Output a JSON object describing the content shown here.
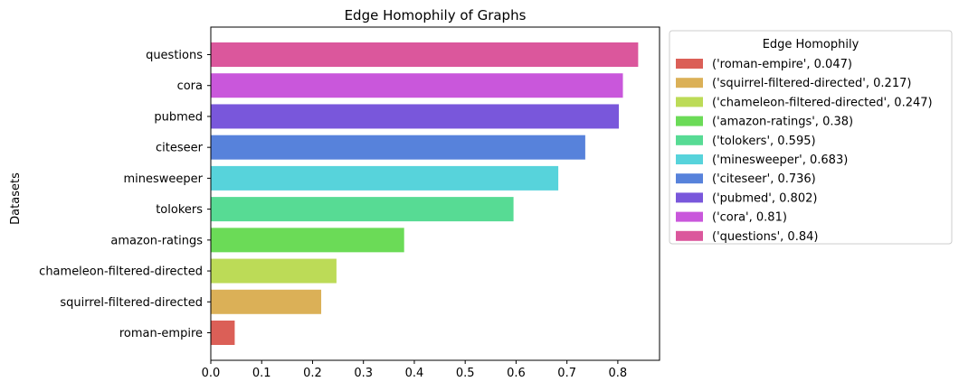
{
  "chart_data": {
    "type": "bar",
    "orientation": "horizontal",
    "title": "Edge Homophily of Graphs",
    "xlabel": "",
    "ylabel": "Datasets",
    "xlim": [
      0,
      0.882
    ],
    "xticks": [
      "0.0",
      "0.1",
      "0.2",
      "0.3",
      "0.4",
      "0.5",
      "0.6",
      "0.7",
      "0.8"
    ],
    "xtick_values": [
      0,
      0.1,
      0.2,
      0.3,
      0.4,
      0.5,
      0.6,
      0.7,
      0.8
    ],
    "grid": false,
    "categories": [
      "roman-empire",
      "squirrel-filtered-directed",
      "chameleon-filtered-directed",
      "amazon-ratings",
      "tolokers",
      "minesweeper",
      "citeseer",
      "pubmed",
      "cora",
      "questions"
    ],
    "values": [
      0.047,
      0.217,
      0.247,
      0.38,
      0.595,
      0.683,
      0.736,
      0.802,
      0.81,
      0.84
    ],
    "colors": [
      "#db5f57",
      "#dbb057",
      "#bcdb57",
      "#6bdb57",
      "#57db94",
      "#57d3db",
      "#5782db",
      "#7957db",
      "#c957db",
      "#db579c"
    ],
    "legend": {
      "title": "Edge Homophily",
      "placement": "outside upper right",
      "entries": [
        "('roman-empire', 0.047)",
        "('squirrel-filtered-directed', 0.217)",
        "('chameleon-filtered-directed', 0.247)",
        "('amazon-ratings', 0.38)",
        "('tolokers', 0.595)",
        "('minesweeper', 0.683)",
        "('citeseer', 0.736)",
        "('pubmed', 0.802)",
        "('cora', 0.81)",
        "('questions', 0.84)"
      ]
    }
  }
}
